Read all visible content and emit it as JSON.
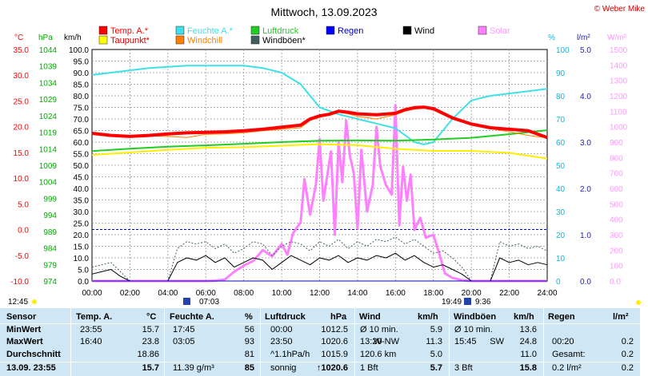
{
  "title": "Mittwoch, 13.09.2023",
  "copyright": "© Weber Mike",
  "colors": {
    "temp": "#ff0000",
    "feuchte": "#40e0e8",
    "luftdruck": "#22cc22",
    "regen": "#0000ff",
    "wind": "#000000",
    "solar": "#ff80ff",
    "taupunkt": "#ffff00",
    "windchill": "#ff8000",
    "windboeen": "#406060",
    "axis_temp": "#ff0000",
    "axis_hpa": "#00aa00",
    "axis_pct": "#00bbdd",
    "axis_rain": "#2222aa",
    "axis_solar": "#ff99ff",
    "panel": "#cfe7f4"
  },
  "legend": [
    {
      "label": "Temp. A.*",
      "color": "#ff0000"
    },
    {
      "label": "Feuchte A.*",
      "color": "#40e0e8"
    },
    {
      "label": "Luftdruck",
      "color": "#22cc22"
    },
    {
      "label": "Regen",
      "color": "#0000ff"
    },
    {
      "label": "Wind",
      "color": "#000000"
    },
    {
      "label": "Solar",
      "color": "#ff80ff"
    },
    {
      "label": "Taupunkt*",
      "color": "#ffff00"
    },
    {
      "label": "Windchill",
      "color": "#ff8000"
    },
    {
      "label": "Windböen*",
      "color": "#406060"
    }
  ],
  "axis_units": {
    "temp": "°C",
    "hpa": "hPa",
    "kmh": "km/h",
    "pct": "%",
    "rain": "l/m²",
    "solar": "W/m²"
  },
  "ticks": {
    "temp": [
      "35.0",
      "30.0",
      "25.0",
      "20.0",
      "15.0",
      "10.0",
      "5.0",
      "0.0",
      "-5.0",
      "-10.0"
    ],
    "hpa": [
      "1044",
      "1039",
      "1034",
      "1029",
      "1024",
      "1019",
      "1014",
      "1009",
      "1004",
      "999",
      "994",
      "989",
      "984",
      "979",
      "974"
    ],
    "kmh": [
      "100.0",
      "95.0",
      "90.0",
      "85.0",
      "80.0",
      "75.0",
      "70.0",
      "65.0",
      "60.0",
      "55.0",
      "50.0",
      "45.0",
      "40.0",
      "35.0",
      "30.0",
      "25.0",
      "20.0",
      "15.0",
      "10.0",
      "5.0",
      "0.0"
    ],
    "pct": [
      "100",
      "90",
      "80",
      "70",
      "60",
      "50",
      "40",
      "30",
      "20",
      "10",
      "0"
    ],
    "rain": [
      "5.0",
      "4.0",
      "3.0",
      "2.0",
      "1.0",
      "0.0"
    ],
    "solar": [
      "1500",
      "1400",
      "1300",
      "1200",
      "1100",
      "1000",
      "900",
      "800",
      "700",
      "600",
      "500",
      "400",
      "300",
      "200",
      "100",
      "0.0"
    ],
    "x": [
      "00:00",
      "02:00",
      "04:00",
      "06:00",
      "08:00",
      "10:00",
      "12:00",
      "14:00",
      "16:00",
      "18:00",
      "20:00",
      "22:00",
      "24:00"
    ]
  },
  "sun": {
    "sunrise": "07:03",
    "sunset": "19:49",
    "moonset": "12:45",
    "moonrise": "9:36"
  },
  "chart_data": {
    "type": "line",
    "x_unit": "hours",
    "xlim": [
      0,
      24
    ],
    "grid": true,
    "series": [
      {
        "name": "Temp. A.*",
        "axis": "temp",
        "ylim": [
          -10,
          35
        ],
        "x": [
          0,
          1,
          2,
          3,
          4,
          5,
          6,
          7,
          8,
          9,
          10,
          11,
          11.5,
          12,
          12.5,
          13,
          13.5,
          14,
          15,
          16,
          16.5,
          17,
          17.5,
          18,
          19,
          20,
          21,
          22,
          23,
          24
        ],
        "y": [
          18.7,
          18.3,
          18.1,
          18.3,
          18.6,
          18.8,
          18.9,
          19.0,
          19.2,
          19.5,
          19.9,
          20.3,
          21.5,
          22.1,
          22.4,
          23.0,
          22.8,
          22.5,
          22.3,
          22.6,
          23.3,
          23.7,
          23.8,
          23.5,
          21.7,
          20.5,
          19.8,
          19.5,
          19.2,
          17.9
        ]
      },
      {
        "name": "Feuchte A.*",
        "axis": "pct",
        "ylim": [
          0,
          100
        ],
        "x": [
          0,
          1,
          2,
          3,
          4,
          5,
          6,
          7,
          8,
          9,
          10,
          11,
          12,
          13,
          14,
          15,
          16,
          17,
          17.5,
          18,
          19,
          20,
          21,
          22,
          23,
          24
        ],
        "y": [
          89,
          90,
          91,
          92,
          92.5,
          93,
          93,
          93,
          93,
          92,
          90,
          85,
          75,
          72,
          70,
          68,
          66,
          60,
          59,
          60,
          70,
          78,
          80,
          81,
          82,
          83
        ]
      },
      {
        "name": "Luftdruck",
        "axis": "hpa",
        "ylim": [
          974,
          1044
        ],
        "x": [
          0,
          2,
          4,
          6,
          8,
          10,
          12,
          14,
          16,
          18,
          20,
          22,
          24
        ],
        "y": [
          1013.3,
          1014,
          1014.6,
          1015,
          1015.5,
          1016,
          1016.4,
          1016.5,
          1016.4,
          1016.8,
          1017.3,
          1018.4,
          1019.6
        ]
      },
      {
        "name": "Taupunkt*",
        "axis": "temp",
        "ylim": [
          -10,
          35
        ],
        "x": [
          0,
          2,
          4,
          6,
          8,
          10,
          12,
          14,
          16,
          18,
          20,
          22,
          24
        ],
        "y": [
          14.5,
          15.0,
          15.5,
          15.9,
          16.0,
          16.3,
          16.6,
          16.4,
          15.7,
          15.3,
          15.3,
          14.9,
          13.8
        ]
      },
      {
        "name": "Windchill",
        "axis": "temp",
        "ylim": [
          -10,
          35
        ],
        "x": [
          0,
          1,
          2,
          3,
          4,
          5,
          6,
          7,
          8,
          9,
          10,
          11,
          11.5,
          12,
          12.5,
          13,
          13.5,
          14,
          15,
          16,
          16.5,
          17,
          17.5,
          18,
          19,
          20,
          21,
          22,
          23,
          24
        ],
        "y": [
          18.6,
          18.2,
          18.0,
          18.2,
          18.1,
          17.9,
          18.5,
          18.6,
          18.8,
          19.2,
          19.5,
          19.8,
          21.2,
          21.8,
          22.3,
          22.8,
          22.5,
          22.0,
          21.5,
          22.3,
          23.0,
          23.4,
          23.6,
          23.2,
          21.5,
          20.4,
          19.6,
          19.0,
          18.3,
          17.8
        ]
      },
      {
        "name": "Wind",
        "axis": "kmh",
        "ylim": [
          0,
          100
        ],
        "x": [
          0,
          0.5,
          1,
          1.5,
          2,
          3,
          4,
          4.5,
          5,
          5.5,
          6,
          6.5,
          7,
          7.5,
          8,
          8.5,
          9,
          9.5,
          10,
          10.5,
          11,
          11.5,
          12,
          12.5,
          13,
          13.5,
          14,
          14.5,
          15,
          15.5,
          16,
          16.5,
          17,
          17.5,
          18,
          18.5,
          19,
          19.5,
          20,
          21,
          21.5,
          22,
          22.5,
          23,
          23.5,
          24
        ],
        "y": [
          3,
          4,
          5,
          2,
          0,
          0,
          0,
          8,
          10,
          9,
          11,
          8,
          10,
          6,
          8,
          10,
          9,
          5,
          8,
          11,
          9,
          7,
          10,
          9,
          11,
          8,
          10,
          9,
          11,
          10,
          12,
          9,
          11,
          8,
          6,
          7,
          5,
          3,
          0,
          0,
          10,
          8,
          9,
          7,
          8,
          7
        ]
      },
      {
        "name": "Windböen*",
        "axis": "kmh",
        "ylim": [
          0,
          100
        ],
        "x": [
          0,
          0.5,
          1,
          1.5,
          2,
          3,
          4,
          4.5,
          5,
          5.5,
          6,
          6.5,
          7,
          7.5,
          8,
          8.5,
          9,
          9.5,
          10,
          10.5,
          11,
          11.5,
          12,
          12.5,
          13,
          13.5,
          14,
          14.5,
          15,
          15.5,
          16,
          16.5,
          17,
          17.5,
          18,
          18.5,
          19,
          19.5,
          20,
          21,
          21.5,
          22,
          22.5,
          23,
          23.5,
          24
        ],
        "y": [
          6,
          7,
          8,
          4,
          0,
          0,
          0,
          14,
          17,
          16,
          17,
          14,
          16,
          12,
          14,
          17,
          16,
          11,
          15,
          17,
          16,
          13,
          17,
          15,
          18,
          14,
          17,
          15,
          18,
          17,
          19,
          16,
          18,
          15,
          12,
          13,
          10,
          6,
          0,
          0,
          17,
          15,
          16,
          14,
          15,
          13
        ]
      },
      {
        "name": "Solar",
        "axis": "solar",
        "ylim": [
          0,
          1500
        ],
        "x": [
          0,
          6,
          6.5,
          7,
          7.5,
          8,
          8.5,
          9,
          9.5,
          10,
          10.3,
          10.6,
          11,
          11.2,
          11.5,
          11.8,
          12,
          12.2,
          12.4,
          12.6,
          12.8,
          13,
          13.2,
          13.4,
          13.6,
          13.8,
          14,
          14.2,
          14.5,
          14.8,
          15,
          15.2,
          15.5,
          15.8,
          16,
          16.2,
          16.4,
          16.6,
          16.8,
          17,
          17.3,
          17.6,
          18,
          18.3,
          18.6,
          19,
          19.5,
          20,
          24
        ],
        "y": [
          0,
          0,
          2,
          10,
          60,
          100,
          130,
          200,
          160,
          240,
          170,
          310,
          380,
          660,
          430,
          620,
          920,
          520,
          680,
          840,
          300,
          900,
          640,
          1040,
          810,
          700,
          340,
          850,
          450,
          620,
          1000,
          740,
          620,
          560,
          1140,
          360,
          740,
          520,
          690,
          330,
          410,
          280,
          300,
          180,
          50,
          20,
          5,
          0,
          0
        ]
      },
      {
        "name": "Regen",
        "axis": "rain",
        "ylim": [
          0,
          5
        ],
        "x": [
          0,
          24
        ],
        "y": [
          0.0,
          0.0
        ]
      }
    ]
  },
  "stats": {
    "headers": {
      "sensor": "Sensor",
      "temp": "Temp. A.",
      "temp_unit": "°C",
      "feuchte": "Feuchte A.",
      "feuchte_unit": "%",
      "luftdruck": "Luftdruck",
      "luftdruck_unit": "hPa",
      "wind": "Wind",
      "wind_unit": "km/h",
      "windboeen": "Windböen",
      "windboeen_unit": "km/h",
      "regen": "Regen",
      "regen_unit": "l/m²"
    },
    "rows": [
      {
        "label": "MinWert",
        "temp_time": "23:55",
        "temp_val": "15.7",
        "feuchte_time": "17:45",
        "feuchte_val": "56",
        "druck_time": "00:00",
        "druck_val": "1012.5",
        "wind_time": "Ø 10 min.",
        "wind_dir": "",
        "wind_val": "5.9",
        "boeen_time": "Ø 10 min.",
        "boeen_dir": "",
        "boeen_val": "13.6",
        "regen_time": "",
        "regen_val": ""
      },
      {
        "label": "MaxWert",
        "temp_time": "16:40",
        "temp_val": "23.8",
        "feuchte_time": "03:05",
        "feuchte_val": "93",
        "druck_time": "23:50",
        "druck_val": "1020.6",
        "wind_time": "13:20",
        "wind_dir": "W-NW",
        "wind_val": "11.3",
        "boeen_time": "15:45",
        "boeen_dir": "SW",
        "boeen_val": "24.8",
        "regen_time": "00:20",
        "regen_val": "0.2"
      },
      {
        "label": "Durchschnitt",
        "temp_time": "",
        "temp_val": "18.86",
        "feuchte_time": "",
        "feuchte_val": "81",
        "druck_time": "^1.1hPa/h",
        "druck_val": "1015.9",
        "wind_time": "120.6 km",
        "wind_dir": "",
        "wind_val": "5.0",
        "boeen_time": "",
        "boeen_dir": "",
        "boeen_val": "11.0",
        "regen_time": "Gesamt:",
        "regen_val": "0.2"
      },
      {
        "label": "13.09.  23:55",
        "temp_time": "",
        "temp_val": "15.7",
        "feuchte_time": "11.39 g/m³",
        "feuchte_val": "85",
        "druck_time": "sonnig",
        "druck_val": "↑1020.6",
        "wind_time": "1 Bft",
        "wind_dir": "",
        "wind_val": "5.7",
        "boeen_time": "3 Bft",
        "boeen_dir": "",
        "boeen_val": "15.8",
        "regen_time": "0.2 l/m²",
        "regen_val": "0.2"
      }
    ]
  }
}
